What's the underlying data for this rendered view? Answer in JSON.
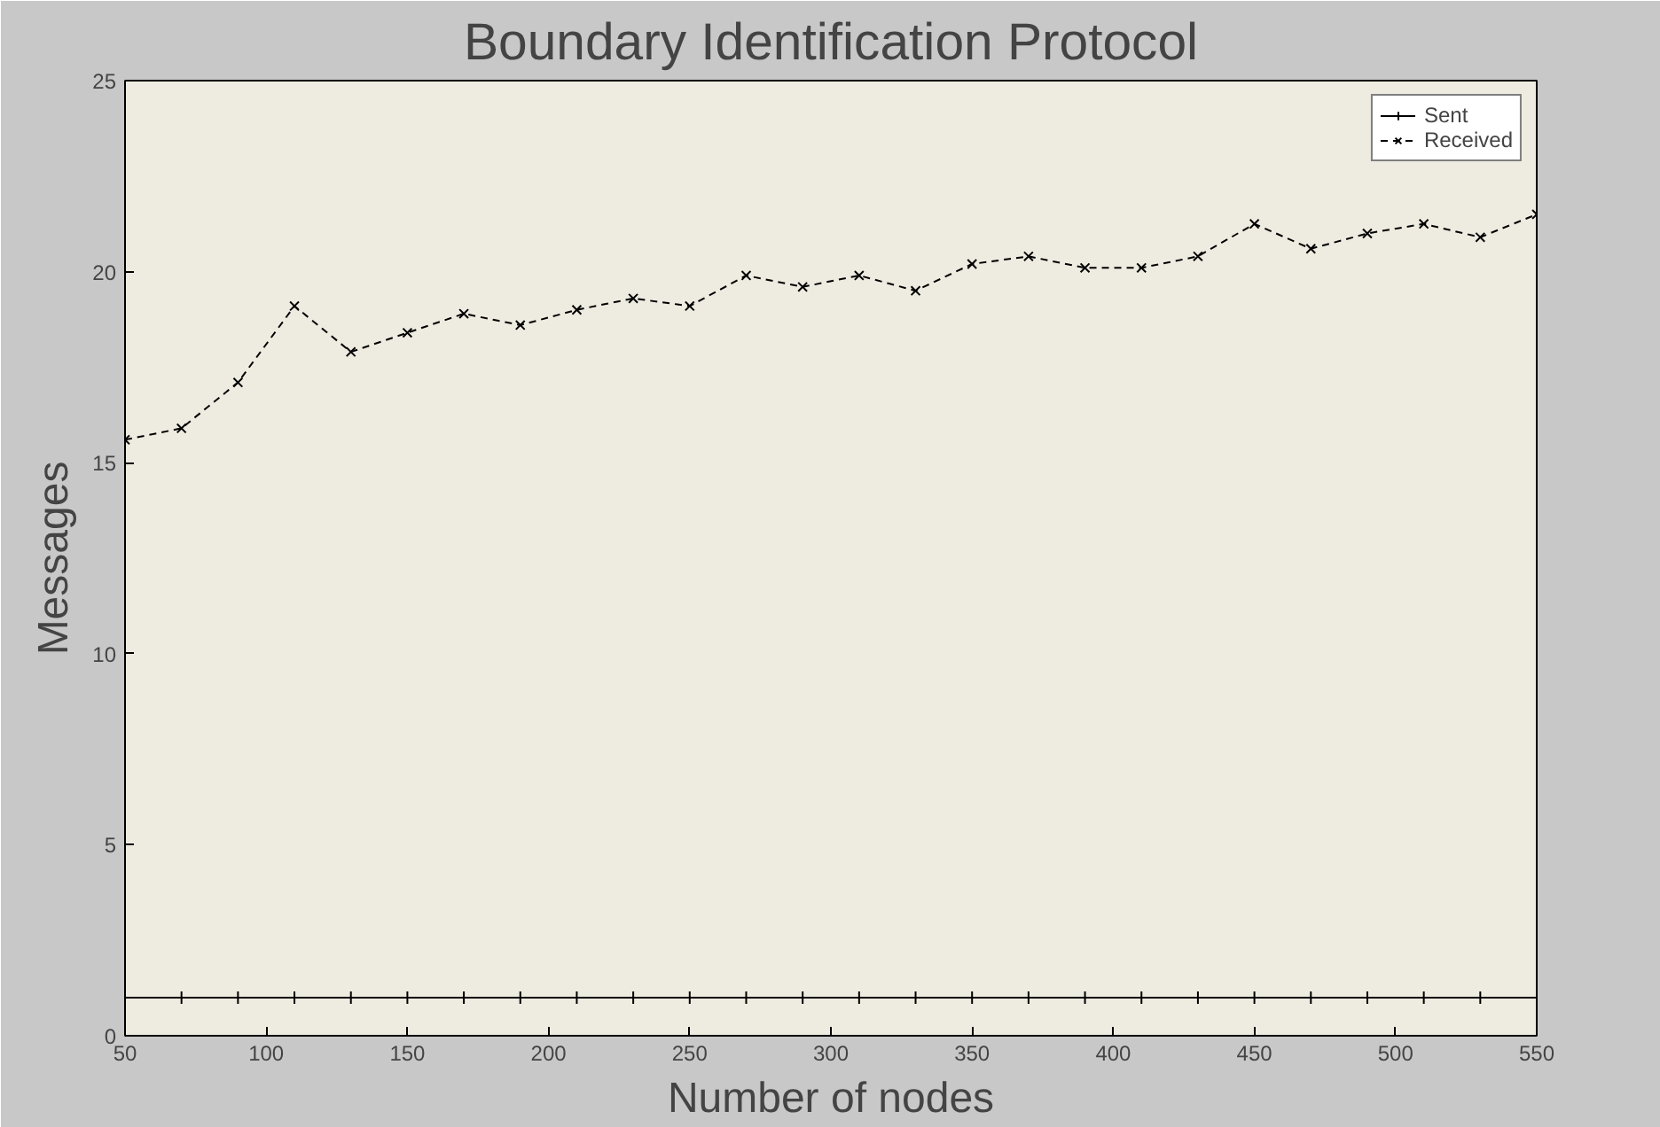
{
  "chart_data": {
    "type": "line",
    "title": "Boundary Identification Protocol",
    "xlabel": "Number of nodes",
    "ylabel": "Messages",
    "x": [
      50,
      70,
      90,
      110,
      130,
      150,
      170,
      190,
      210,
      230,
      250,
      270,
      290,
      310,
      330,
      350,
      370,
      390,
      410,
      430,
      450,
      470,
      490,
      510,
      530,
      550
    ],
    "series": [
      {
        "name": "Sent",
        "color": "#000000",
        "marker": "cross",
        "line_style": "solid",
        "values": [
          1,
          1,
          1,
          1,
          1,
          1,
          1,
          1,
          1,
          1,
          1,
          1,
          1,
          1,
          1,
          1,
          1,
          1,
          1,
          1,
          1,
          1,
          1,
          1,
          1,
          1
        ]
      },
      {
        "name": "Received",
        "color": "#000000",
        "marker": "x",
        "line_style": "dashed",
        "values": [
          15.6,
          15.9,
          17.1,
          19.1,
          17.9,
          18.4,
          18.9,
          18.6,
          19.0,
          19.3,
          19.1,
          19.9,
          19.6,
          19.9,
          19.5,
          20.2,
          20.4,
          20.1,
          20.1,
          20.4,
          21.25,
          20.6,
          21.0,
          21.25,
          20.9,
          21.5
        ]
      }
    ],
    "xlim": [
      50,
      550
    ],
    "ylim": [
      0,
      25
    ],
    "xticks": [
      50,
      100,
      150,
      200,
      250,
      300,
      350,
      400,
      450,
      500,
      550
    ],
    "yticks": [
      0,
      5,
      10,
      15,
      20,
      25
    ],
    "grid": false,
    "legend": "top right"
  }
}
